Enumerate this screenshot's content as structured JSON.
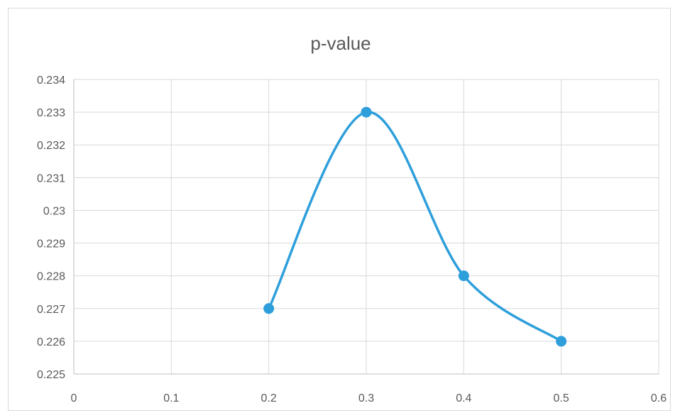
{
  "chart_data": {
    "type": "scatter",
    "title": "p-value",
    "xlabel": "",
    "ylabel": "",
    "xlim": [
      0,
      0.6
    ],
    "ylim": [
      0.225,
      0.234
    ],
    "x_ticks": [
      "0",
      "0.1",
      "0.2",
      "0.3",
      "0.4",
      "0.5",
      "0.6"
    ],
    "y_ticks": [
      "0.225",
      "0.226",
      "0.227",
      "0.228",
      "0.229",
      "0.23",
      "0.231",
      "0.232",
      "0.233",
      "0.234"
    ],
    "grid": true,
    "smooth_line": true,
    "series": [
      {
        "color": "#2e9fdb",
        "x": [
          0.2,
          0.3,
          0.4,
          0.5
        ],
        "y": [
          0.227,
          0.233,
          0.228,
          0.226
        ]
      }
    ]
  }
}
